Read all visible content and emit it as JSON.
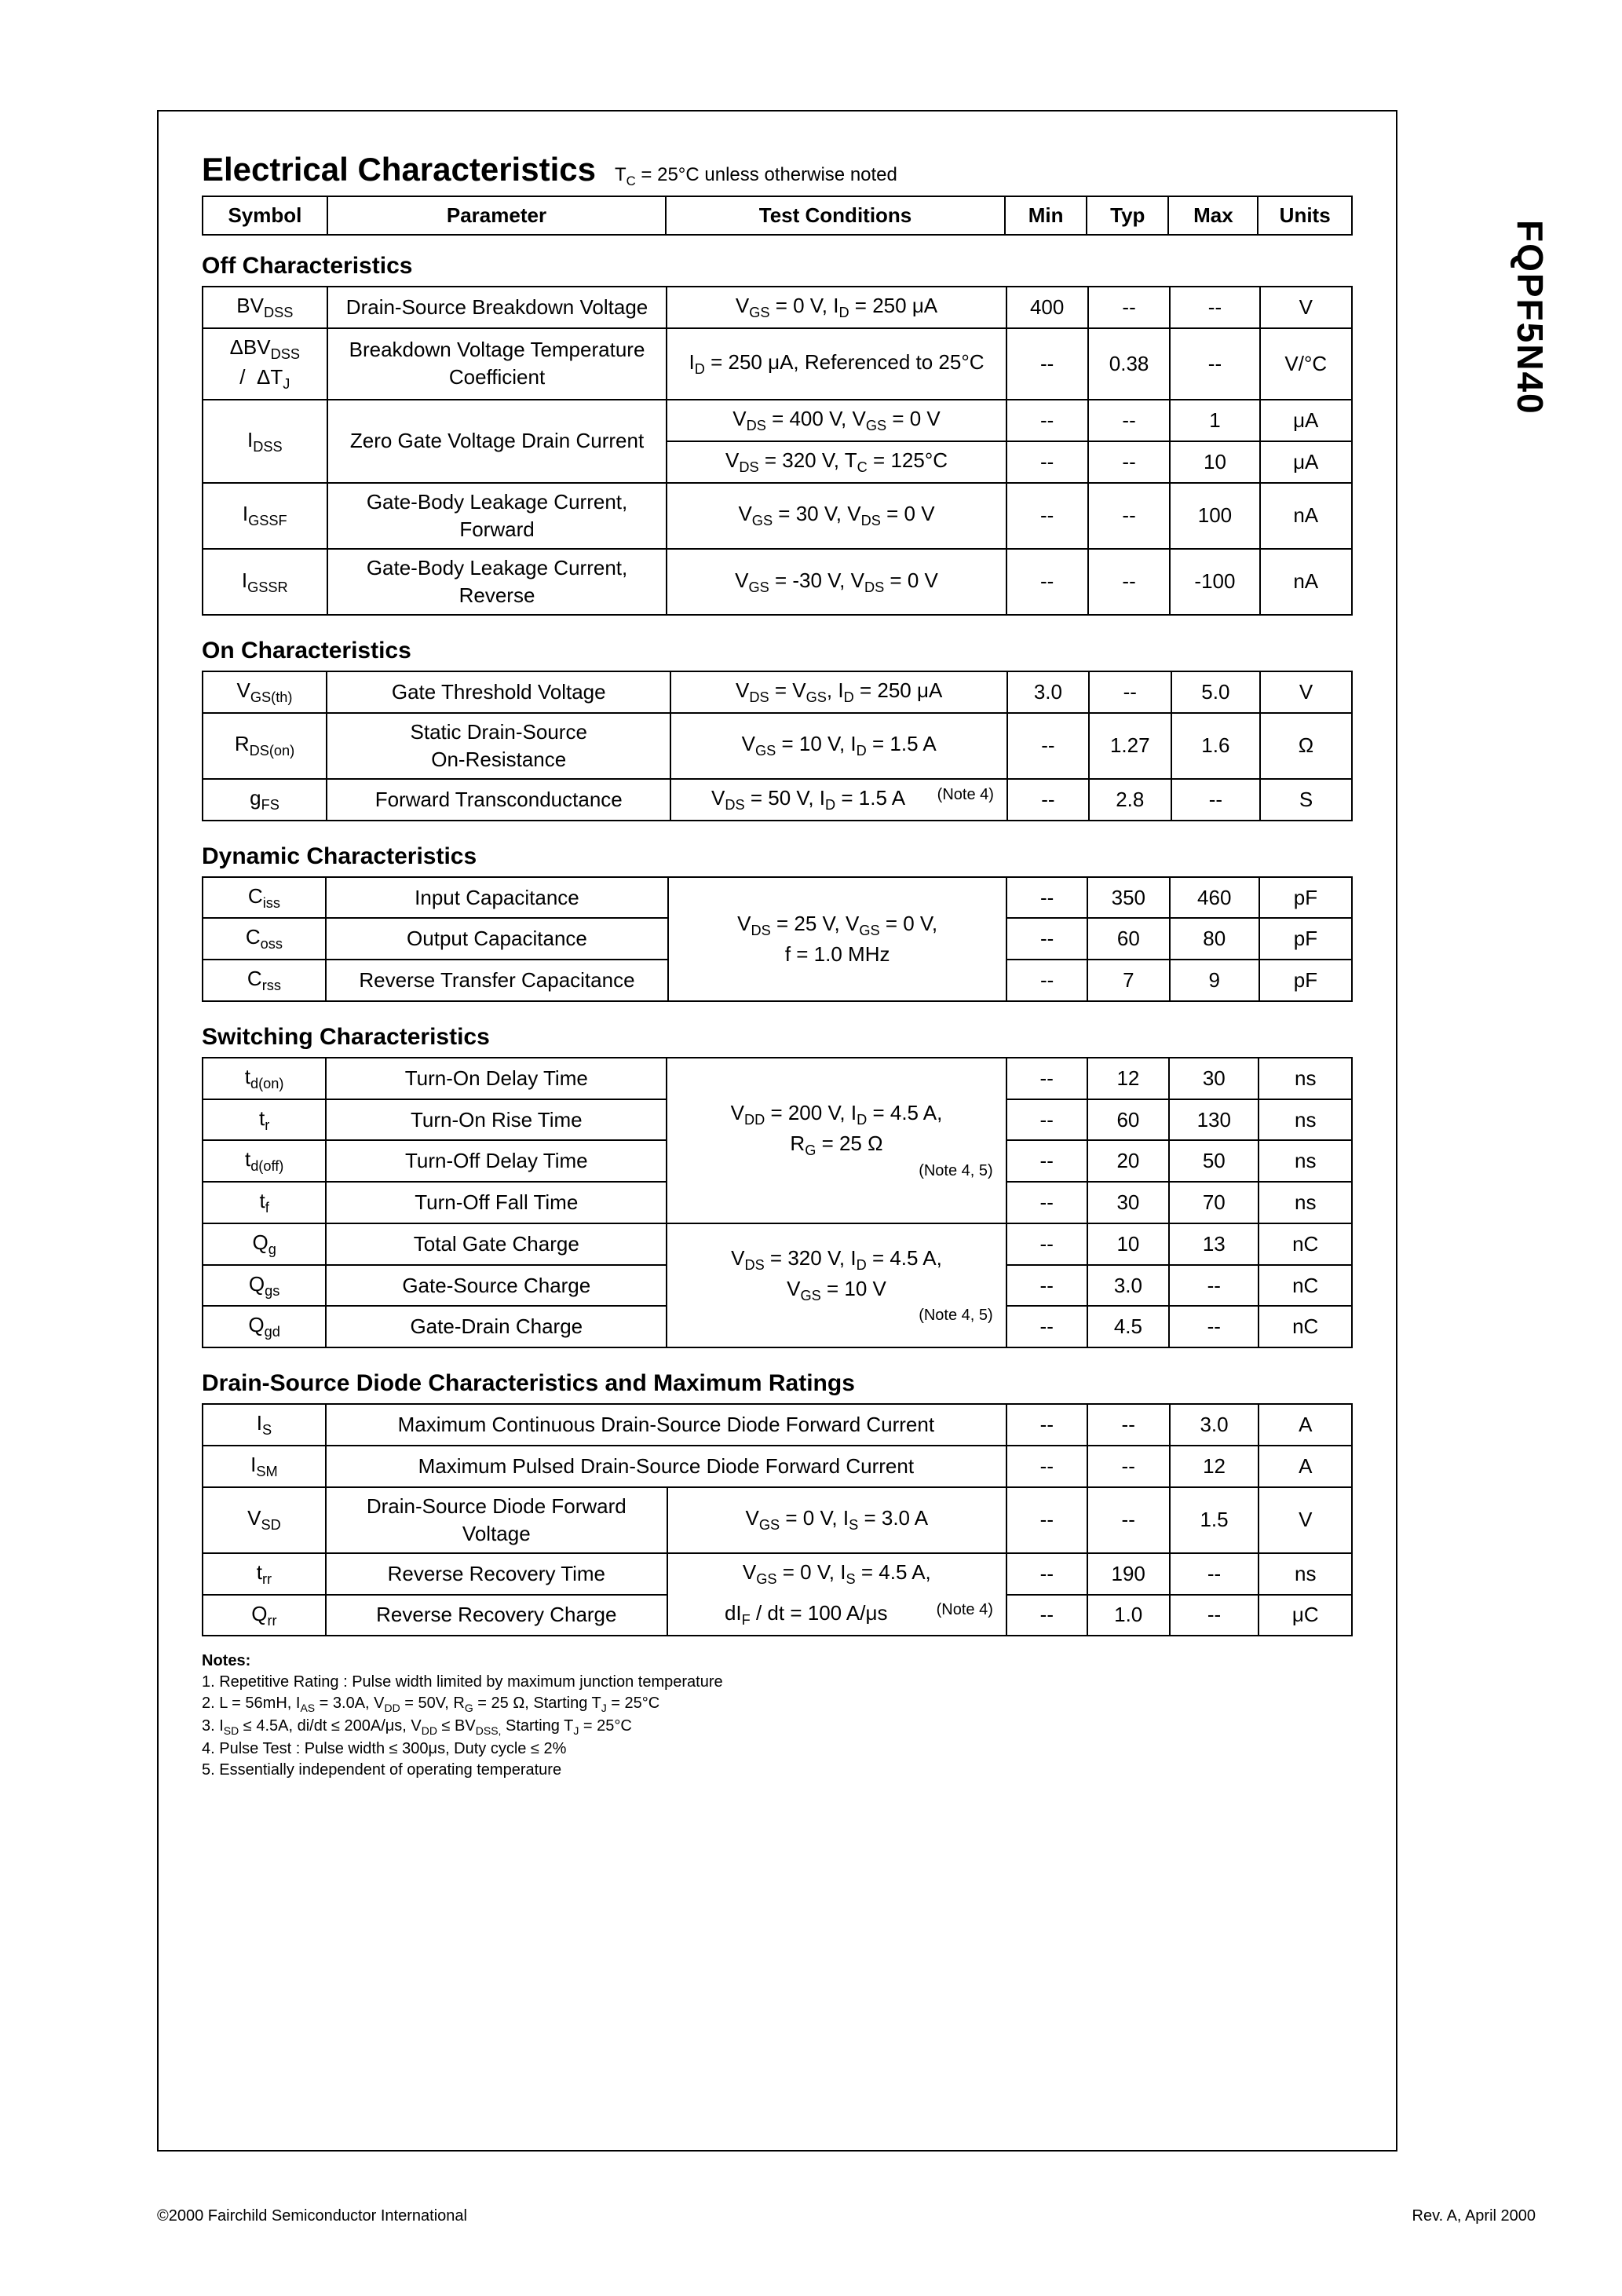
{
  "partnum": "FQPF5N40",
  "title": "Electrical Characteristics",
  "title_sub_prefix": "T",
  "title_sub_sub": "C",
  "title_sub_rest": " = 25°C unless otherwise noted",
  "headers": {
    "symbol": "Symbol",
    "parameter": "Parameter",
    "conditions": "Test Conditions",
    "min": "Min",
    "typ": "Typ",
    "max": "Max",
    "units": "Units"
  },
  "sections": {
    "off": "Off Characteristics",
    "on": "On Characteristics",
    "dyn": "Dynamic Characteristics",
    "sw": "Switching Characteristics",
    "dsd": "Drain-Source Diode Characteristics and Maximum Ratings"
  },
  "off": {
    "bvdss": {
      "sym_pre": "BV",
      "sym_sub": "DSS",
      "param": "Drain-Source Breakdown Voltage",
      "cond": "V<sub>GS</sub> = 0 V, I<sub>D</sub> = 250 μA",
      "min": "400",
      "typ": "--",
      "max": "--",
      "units": "V"
    },
    "dbvdss": {
      "sym_html": "ΔBV<sub>DSS</sub><br>/ &nbsp;ΔT<sub>J</sub>",
      "param": "Breakdown Voltage Temperature Coefficient",
      "cond": "I<sub>D</sub> = 250 μA, Referenced to 25°C",
      "min": "--",
      "typ": "0.38",
      "max": "--",
      "units": "V/°C"
    },
    "idss1": {
      "sym_pre": "I",
      "sym_sub": "DSS",
      "param": "Zero Gate Voltage Drain Current",
      "cond": "V<sub>DS</sub> = 400 V, V<sub>GS</sub> = 0 V",
      "min": "--",
      "typ": "--",
      "max": "1",
      "units": "μA"
    },
    "idss2": {
      "cond": "V<sub>DS</sub> = 320 V, T<sub>C</sub> = 125°C",
      "min": "--",
      "typ": "--",
      "max": "10",
      "units": "μA"
    },
    "igssf": {
      "sym_pre": "I",
      "sym_sub": "GSSF",
      "param": "Gate-Body Leakage Current, Forward",
      "cond": "V<sub>GS</sub> = 30 V, V<sub>DS</sub> = 0 V",
      "min": "--",
      "typ": "--",
      "max": "100",
      "units": "nA"
    },
    "igssr": {
      "sym_pre": "I",
      "sym_sub": "GSSR",
      "param": "Gate-Body Leakage Current, Reverse",
      "cond": "V<sub>GS</sub> = -30 V, V<sub>DS</sub> = 0 V",
      "min": "--",
      "typ": "--",
      "max": "-100",
      "units": "nA"
    }
  },
  "on": {
    "vgsth": {
      "sym_pre": "V",
      "sym_sub": "GS(th)",
      "param": "Gate Threshold Voltage",
      "cond": "V<sub>DS</sub> = V<sub>GS</sub>, I<sub>D</sub> = 250 μA",
      "min": "3.0",
      "typ": "--",
      "max": "5.0",
      "units": "V"
    },
    "rdson": {
      "sym_pre": "R",
      "sym_sub": "DS(on)",
      "param": "Static Drain-Source<br>On-Resistance",
      "cond": "V<sub>GS</sub> = 10 V, I<sub>D</sub> = 1.5 A",
      "min": "--",
      "typ": "1.27",
      "max": "1.6",
      "units": "Ω"
    },
    "gfs": {
      "sym_pre": "g",
      "sym_sub": "FS",
      "param": "Forward Transconductance",
      "cond": "V<sub>DS</sub> = 50 V, I<sub>D</sub> = 1.5 A",
      "note": "(Note 4)",
      "min": "--",
      "typ": "2.8",
      "max": "--",
      "units": "S"
    }
  },
  "dyn": {
    "ciss": {
      "sym_pre": "C",
      "sym_sub": "iss",
      "param": "Input Capacitance",
      "min": "--",
      "typ": "350",
      "max": "460",
      "units": "pF"
    },
    "coss": {
      "sym_pre": "C",
      "sym_sub": "oss",
      "param": "Output Capacitance",
      "min": "--",
      "typ": "60",
      "max": "80",
      "units": "pF"
    },
    "crss": {
      "sym_pre": "C",
      "sym_sub": "rss",
      "param": "Reverse Transfer Capacitance",
      "min": "--",
      "typ": "7",
      "max": "9",
      "units": "pF"
    },
    "cond": "V<sub>DS</sub> = 25 V, V<sub>GS</sub> = 0 V,<br>f = 1.0 MHz"
  },
  "sw": {
    "tdon": {
      "sym_pre": "t",
      "sym_sub": "d(on)",
      "param": "Turn-On Delay Time",
      "min": "--",
      "typ": "12",
      "max": "30",
      "units": "ns"
    },
    "tr": {
      "sym_pre": "t",
      "sym_sub": "r",
      "param": "Turn-On Rise Time",
      "min": "--",
      "typ": "60",
      "max": "130",
      "units": "ns"
    },
    "tdoff": {
      "sym_pre": "t",
      "sym_sub": "d(off)",
      "param": "Turn-Off Delay Time",
      "min": "--",
      "typ": "20",
      "max": "50",
      "units": "ns"
    },
    "tf": {
      "sym_pre": "t",
      "sym_sub": "f",
      "param": "Turn-Off Fall Time",
      "min": "--",
      "typ": "30",
      "max": "70",
      "units": "ns"
    },
    "qg": {
      "sym_pre": "Q",
      "sym_sub": "g",
      "param": "Total Gate Charge",
      "min": "--",
      "typ": "10",
      "max": "13",
      "units": "nC"
    },
    "qgs": {
      "sym_pre": "Q",
      "sym_sub": "gs",
      "param": "Gate-Source Charge",
      "min": "--",
      "typ": "3.0",
      "max": "--",
      "units": "nC"
    },
    "qgd": {
      "sym_pre": "Q",
      "sym_sub": "gd",
      "param": "Gate-Drain Charge",
      "min": "--",
      "typ": "4.5",
      "max": "--",
      "units": "nC"
    },
    "cond1": "V<sub>DD</sub> = 200 V, I<sub>D</sub> = 4.5 A,<br>R<sub>G</sub> = 25 Ω",
    "note1": "(Note 4, 5)",
    "cond2": "V<sub>DS</sub> = 320 V, I<sub>D</sub> = 4.5 A,<br>V<sub>GS</sub> = 10 V",
    "note2": "(Note 4, 5)"
  },
  "dsd": {
    "is": {
      "sym_pre": "I",
      "sym_sub": "S",
      "param": "Maximum Continuous Drain-Source Diode Forward Current",
      "min": "--",
      "typ": "--",
      "max": "3.0",
      "units": "A"
    },
    "ism": {
      "sym_pre": "I",
      "sym_sub": "SM",
      "param": "Maximum Pulsed Drain-Source Diode Forward Current",
      "min": "--",
      "typ": "--",
      "max": "12",
      "units": "A"
    },
    "vsd": {
      "sym_pre": "V",
      "sym_sub": "SD",
      "param": "Drain-Source Diode Forward Voltage",
      "cond": "V<sub>GS</sub> = 0 V, I<sub>S</sub> = 3.0 A",
      "min": "--",
      "typ": "--",
      "max": "1.5",
      "units": "V"
    },
    "trr": {
      "sym_pre": "t",
      "sym_sub": "rr",
      "param": "Reverse Recovery Time",
      "cond": "V<sub>GS</sub> = 0 V, I<sub>S</sub> = 4.5 A,",
      "min": "--",
      "typ": "190",
      "max": "--",
      "units": "ns"
    },
    "qrr": {
      "sym_pre": "Q",
      "sym_sub": "rr",
      "param": "Reverse Recovery Charge",
      "cond": "dI<sub>F</sub> / dt = 100 A/μs",
      "note": "(Note 4)",
      "min": "--",
      "typ": "1.0",
      "max": "--",
      "units": "μC"
    }
  },
  "notes": {
    "title": "Notes:",
    "n1": "1. Repetitive Rating : Pulse width limited by maximum junction temperature",
    "n2": "2. L = 56mH, I<sub>AS</sub> = 3.0A, V<sub>DD</sub> = 50V, R<sub>G</sub> = 25 Ω, Starting  T<sub>J</sub> = 25°C",
    "n3": "3. I<sub>SD</sub> ≤ 4.5A, di/dt ≤ 200A/μs, V<sub>DD</sub> ≤ BV<sub>DSS,</sub> Starting  T<sub>J</sub> = 25°C",
    "n4": "4. Pulse Test : Pulse width ≤ 300μs, Duty cycle ≤ 2%",
    "n5": "5. Essentially independent of operating temperature"
  },
  "footer": {
    "left": "©2000 Fairchild Semiconductor International",
    "right": "Rev. A, April 2000"
  }
}
